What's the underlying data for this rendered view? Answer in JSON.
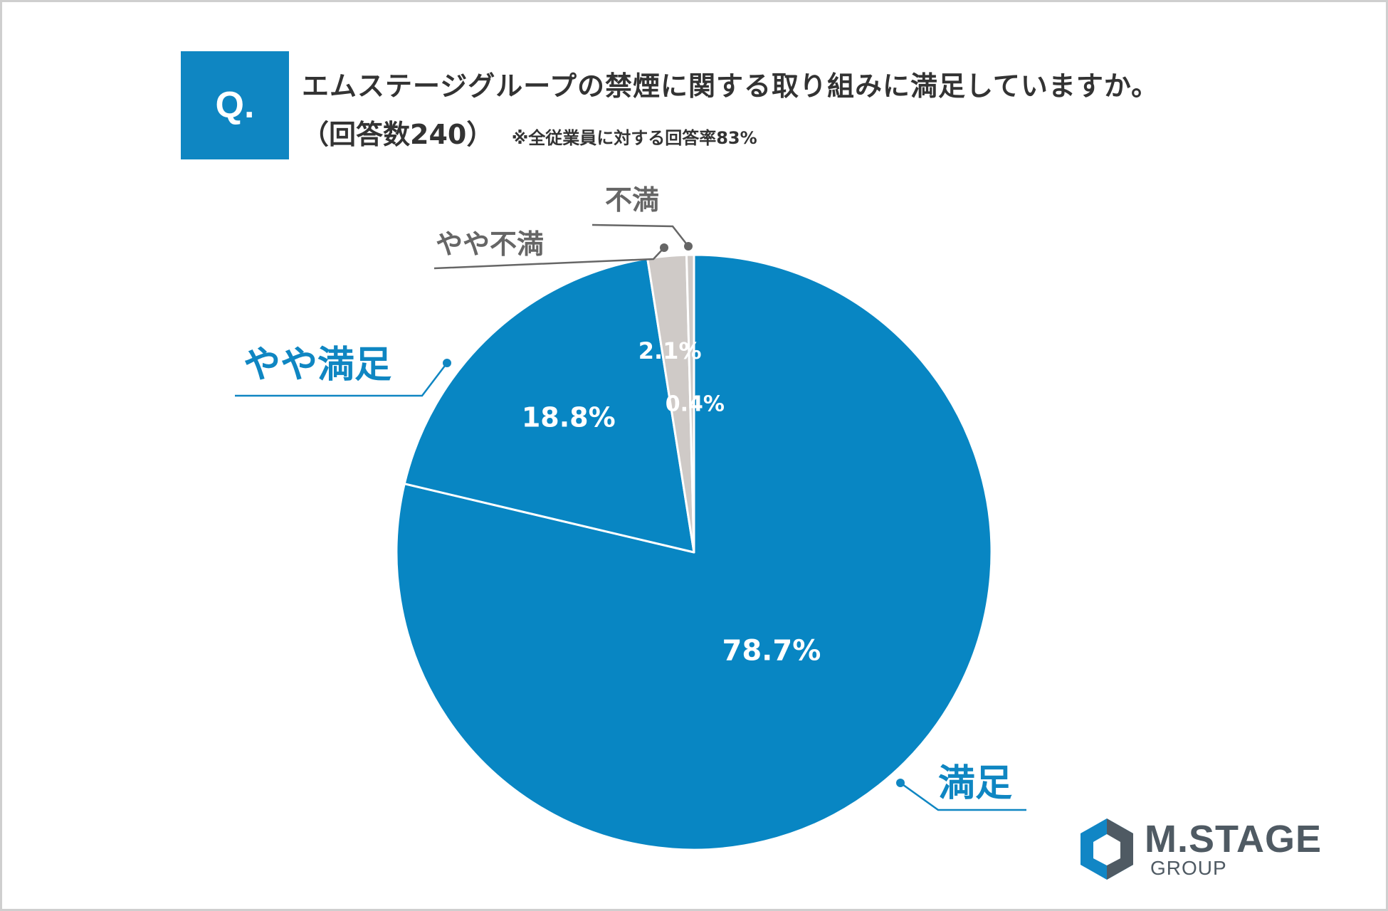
{
  "question": {
    "badge": "Q.",
    "title": "エムステージグループの禁煙に関する取り組みに満足していますか。",
    "count": "（回答数240）",
    "note": "※全従業員に対する回答率83%"
  },
  "chart_data": {
    "type": "pie",
    "title": "エムステージグループの禁煙に関する取り組みに満足していますか。",
    "start": "12 o'clock, clockwise",
    "slices": [
      {
        "label": "満足",
        "value": 78.7,
        "value_label": "78.7%",
        "color": "#0886c3"
      },
      {
        "label": "やや満足",
        "value": 18.8,
        "value_label": "18.8%",
        "color": "#0886c3"
      },
      {
        "label": "やや不満",
        "value": 2.1,
        "value_label": "2.1%",
        "color": "#cfcac7"
      },
      {
        "label": "不満",
        "value": 0.4,
        "value_label": "0.4%",
        "color": "#cfcac7"
      }
    ]
  },
  "logo": {
    "name": "M.STAGE",
    "sub": "GROUP",
    "colors": {
      "blue": "#1186c5",
      "gray": "#4f5a63"
    }
  }
}
